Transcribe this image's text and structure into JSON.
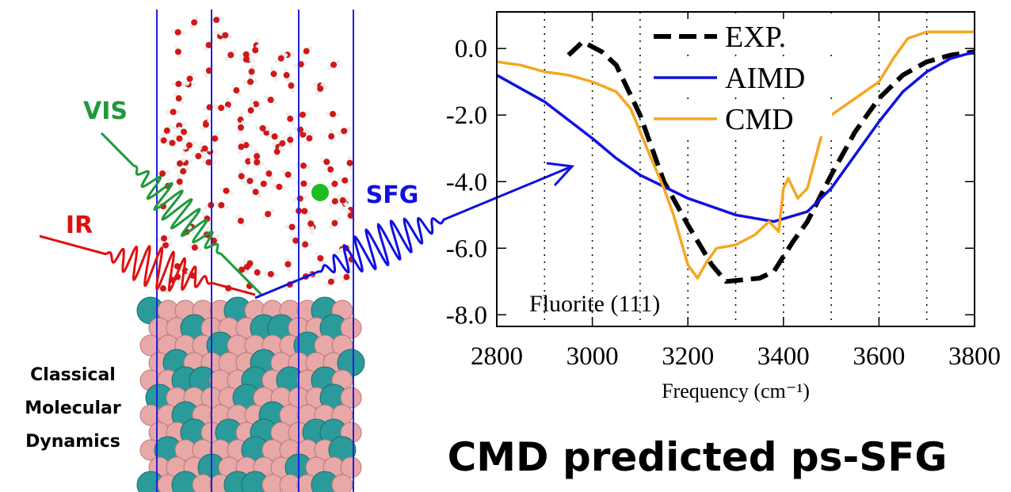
{
  "chart_data": {
    "type": "line",
    "xlabel": "Frequency (cm⁻¹)",
    "annotation": "Fluorite (111)",
    "xlim": [
      2800,
      3800
    ],
    "ylim": [
      -8.35,
      1.1
    ],
    "xticks": [
      2800,
      3000,
      3200,
      3400,
      3600,
      3800
    ],
    "yticks": [
      {
        "value": 0,
        "label": "0.0"
      },
      {
        "value": -2,
        "label": "-2.0"
      },
      {
        "value": -4,
        "label": "-4.0"
      },
      {
        "value": -6,
        "label": "-6.0"
      },
      {
        "value": -8,
        "label": "-8.0"
      }
    ],
    "xgrid": [
      2900,
      3000,
      3100,
      3200,
      3300,
      3400,
      3500,
      3600,
      3700
    ],
    "legend": "top",
    "series": [
      {
        "name": "EXP.",
        "color": "#000000",
        "dash": true,
        "x": [
          2950,
          2980,
          3020,
          3050,
          3100,
          3150,
          3200,
          3250,
          3280,
          3350,
          3380,
          3420,
          3450,
          3500,
          3550,
          3600,
          3650,
          3700,
          3750,
          3800
        ],
        "values": [
          -0.2,
          0.2,
          -0.1,
          -0.5,
          -2.0,
          -4.0,
          -5.3,
          -6.5,
          -7.0,
          -6.9,
          -6.7,
          -5.8,
          -5.2,
          -3.8,
          -2.5,
          -1.5,
          -0.8,
          -0.4,
          -0.2,
          -0.1
        ]
      },
      {
        "name": "AIMD",
        "color": "#1010e0",
        "dash": false,
        "x": [
          2800,
          2900,
          3000,
          3050,
          3100,
          3200,
          3300,
          3380,
          3450,
          3500,
          3550,
          3600,
          3650,
          3700,
          3750,
          3800
        ],
        "values": [
          -0.8,
          -1.6,
          -2.7,
          -3.3,
          -3.8,
          -4.5,
          -5.0,
          -5.2,
          -4.9,
          -4.2,
          -3.2,
          -2.2,
          -1.3,
          -0.7,
          -0.3,
          -0.1
        ]
      },
      {
        "name": "CMD",
        "color": "#f5a623",
        "dash": false,
        "x": [
          2800,
          2850,
          2900,
          2950,
          3000,
          3050,
          3080,
          3100,
          3120,
          3150,
          3170,
          3200,
          3220,
          3240,
          3260,
          3300,
          3340,
          3370,
          3390,
          3400,
          3410,
          3430,
          3450,
          3480,
          3500,
          3550,
          3600,
          3630,
          3660,
          3700,
          3800
        ],
        "values": [
          -0.4,
          -0.5,
          -0.7,
          -0.8,
          -1.0,
          -1.3,
          -1.8,
          -2.5,
          -3.2,
          -4.2,
          -5.0,
          -6.5,
          -6.9,
          -6.4,
          -6.0,
          -5.9,
          -5.6,
          -5.2,
          -5.5,
          -4.2,
          -3.9,
          -4.5,
          -4.2,
          -2.6,
          -2.0,
          -1.5,
          -1.0,
          -0.3,
          0.3,
          0.5,
          0.5
        ]
      }
    ]
  },
  "illustration": {
    "beams": [
      "VIS",
      "IR",
      "SFG"
    ],
    "method": [
      "Classical",
      "Molecular",
      "Dynamics"
    ]
  },
  "caption": "CMD predicted ps-SFG"
}
